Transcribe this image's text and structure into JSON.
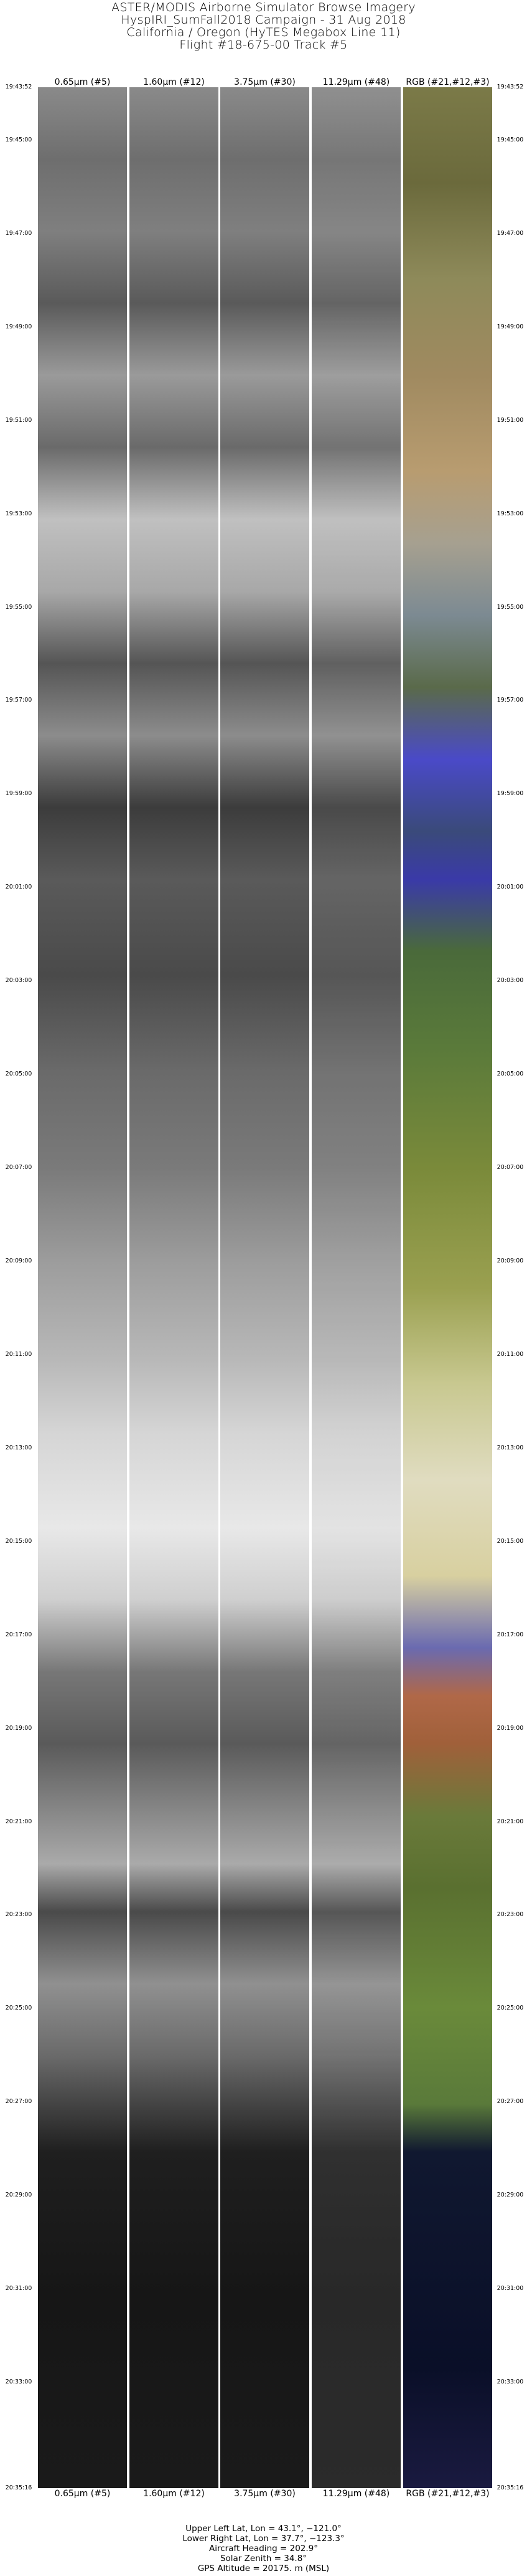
{
  "title_lines": [
    "ASTER/MODIS Airborne Simulator Browse Imagery",
    "HyspIRI_SumFall2018 Campaign - 31 Aug 2018",
    "California / Oregon (HyTES Megabox Line 11)",
    "Flight #18-675-00 Track #5"
  ],
  "bands": [
    "0.65μm (#5)",
    "1.60μm (#12)",
    "3.75μm (#30)",
    "11.29μm (#48)",
    "RGB (#21,#12,#3)"
  ],
  "start_time": "19:43:52",
  "end_time": "20:35:16",
  "times": [
    "19:45:00",
    "19:47:00",
    "19:49:00",
    "19:51:00",
    "19:53:00",
    "19:55:00",
    "19:57:00",
    "19:59:00",
    "20:01:00",
    "20:03:00",
    "20:05:00",
    "20:07:00",
    "20:09:00",
    "20:11:00",
    "20:13:00",
    "20:15:00",
    "20:17:00",
    "20:19:00",
    "20:21:00",
    "20:23:00",
    "20:25:00",
    "20:27:00",
    "20:29:00",
    "20:31:00",
    "20:33:00"
  ],
  "footer": [
    "Upper Left Lat, Lon =   43.1°, −121.0°",
    "Lower Right Lat, Lon =   37.7°, −123.3°",
    "Aircraft Heading =  202.9°",
    "Solar Zenith =   34.8°",
    "GPS Altitude =  20175. m (MSL)"
  ]
}
